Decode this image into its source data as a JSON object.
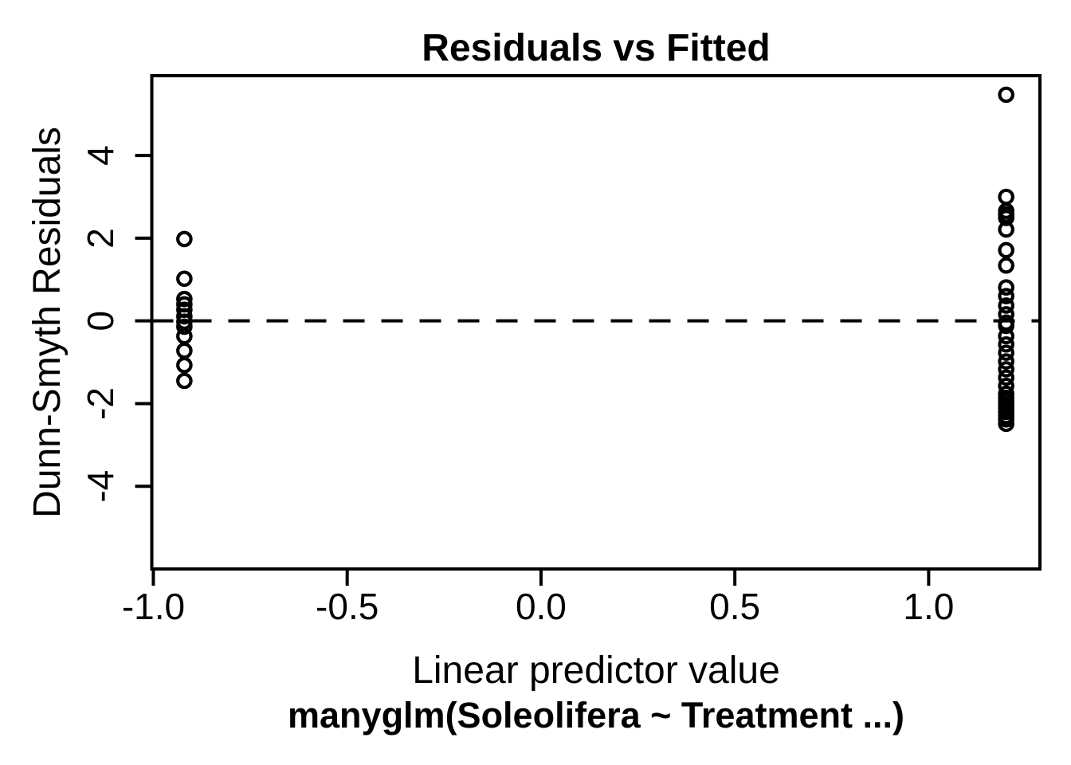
{
  "colors": {
    "background": "#ffffff",
    "foreground": "#000000"
  },
  "chart_data": {
    "type": "scatter",
    "title": "Residuals vs Fitted",
    "xlabel": "Linear predictor value",
    "xlabel_line2": "manyglm(Soleolifera ~ Treatment ...)",
    "ylabel": "Dunn-Smyth Residuals",
    "xlim": [
      -1.004,
      1.287
    ],
    "ylim": [
      -6.0,
      5.93
    ],
    "x_ticks": [
      {
        "value": -1.0,
        "label": "-1.0"
      },
      {
        "value": -0.5,
        "label": "-0.5"
      },
      {
        "value": 0.0,
        "label": "0.0"
      },
      {
        "value": 0.5,
        "label": "0.5"
      },
      {
        "value": 1.0,
        "label": "1.0"
      }
    ],
    "y_ticks": [
      {
        "value": -4,
        "label": "-4"
      },
      {
        "value": -2,
        "label": "-2"
      },
      {
        "value": 0,
        "label": "0"
      },
      {
        "value": 2,
        "label": "2"
      },
      {
        "value": 4,
        "label": "4"
      }
    ],
    "grid": false,
    "legend": null,
    "marker": {
      "shape": "open-circle",
      "radius_px": 8.2,
      "stroke_px": 4.2,
      "color": "#000000"
    },
    "reference_line": {
      "y": 0,
      "style": "dashed",
      "color": "#000000"
    },
    "series": [
      {
        "name": "residuals-at-linear-predictor--0.92",
        "x": -0.92,
        "y": [
          1.98,
          1.02,
          0.53,
          0.4,
          0.27,
          0.11,
          -0.02,
          -0.14,
          -0.37,
          -0.72,
          -1.07,
          -1.45
        ]
      },
      {
        "name": "residuals-at-linear-predictor-1.2",
        "x": 1.2,
        "y": [
          5.47,
          3.0,
          2.66,
          2.57,
          2.49,
          2.21,
          1.71,
          1.34,
          0.81,
          0.6,
          0.37,
          0.16,
          -0.04,
          -0.12,
          -0.37,
          -0.57,
          -0.77,
          -0.98,
          -1.17,
          -1.37,
          -1.57,
          -1.76,
          -1.86,
          -1.95,
          -2.03,
          -2.12,
          -2.2,
          -2.3,
          -2.38,
          -2.49
        ]
      }
    ]
  }
}
